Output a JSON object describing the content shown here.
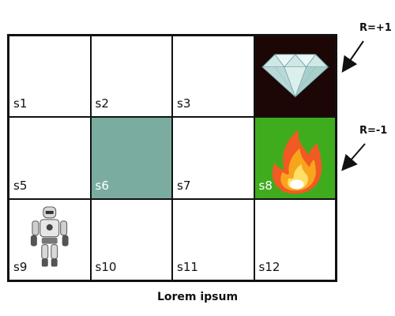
{
  "grid": {
    "cells": [
      {
        "label": "s1",
        "fill": "#ffffff"
      },
      {
        "label": "s2",
        "fill": "#ffffff"
      },
      {
        "label": "s3",
        "fill": "#ffffff"
      },
      {
        "label": "",
        "fill": "#1c0606",
        "icon": "diamond-icon"
      },
      {
        "label": "s5",
        "fill": "#ffffff"
      },
      {
        "label": "s6",
        "fill": "#7aada0"
      },
      {
        "label": "s7",
        "fill": "#ffffff"
      },
      {
        "label": "s8",
        "fill": "#3fac1e",
        "icon": "fire-icon"
      },
      {
        "label": "s9",
        "fill": "#ffffff",
        "icon": "robot-icon"
      },
      {
        "label": "s10",
        "fill": "#ffffff"
      },
      {
        "label": "s11",
        "fill": "#ffffff"
      },
      {
        "label": "s12",
        "fill": "#ffffff"
      }
    ]
  },
  "rewards": {
    "positive": "R=+1",
    "negative": "R=-1"
  },
  "caption": "Lorem ipsum"
}
